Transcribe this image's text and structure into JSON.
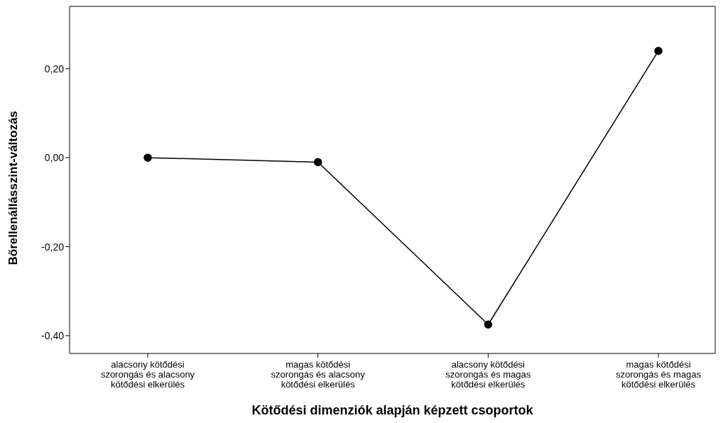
{
  "chart_data": {
    "type": "line",
    "xlabel": "Kötődési dimenziók alapján képzett csoportok",
    "ylabel": "Bőrellenállásszint-változás",
    "categories": [
      "alacsony kötődési szorongás és alacsony kötődési elkerülés",
      "magas kötődési szorongás és alacsony kötődési elkerülés",
      "alacsony kötődési szorongás és magas kötődési elkerülés",
      "magas kötődési szorongás és magas kötődési elkerülés"
    ],
    "series": [
      {
        "color": "#000000",
        "values": [
          0.0,
          -0.01,
          -0.375,
          0.24
        ]
      }
    ],
    "ylim": [
      -0.44,
      0.34
    ],
    "yticks": [
      {
        "value": -0.4,
        "label": "-0,40"
      },
      {
        "value": -0.2,
        "label": "-0,20"
      },
      {
        "value": 0,
        "label": "0,00"
      },
      {
        "value": 0.2,
        "label": "0,20"
      }
    ],
    "grid": false,
    "marker": "circle",
    "line_style": "solid"
  }
}
